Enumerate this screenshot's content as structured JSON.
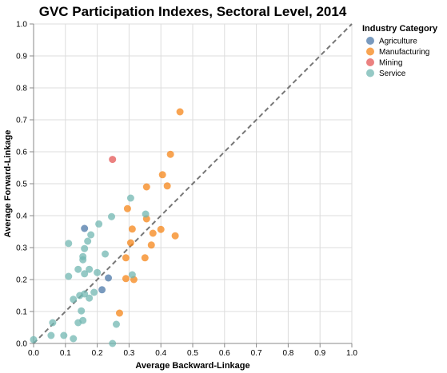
{
  "chart_data": {
    "type": "scatter",
    "title": "GVC Participation Indexes, Sectoral Level, 2014",
    "xlabel": "Average Backward-Linkage",
    "ylabel": "Average Forward-Linkage",
    "xlim": [
      0,
      1
    ],
    "ylim": [
      0,
      1
    ],
    "x_ticks": [
      "0.0",
      "0.1",
      "0.2",
      "0.3",
      "0.4",
      "0.5",
      "0.6",
      "0.7",
      "0.8",
      "0.9",
      "1.0"
    ],
    "y_ticks": [
      "0.0",
      "0.1",
      "0.2",
      "0.3",
      "0.4",
      "0.5",
      "0.6",
      "0.7",
      "0.8",
      "0.9",
      "1.0"
    ],
    "grid": true,
    "diagonal_reference_line": true,
    "legend": {
      "title": "Industry Category",
      "position": "right"
    },
    "series": [
      {
        "name": "Agriculture",
        "color": "#4c78a8",
        "points": [
          {
            "x": 0.16,
            "y": 0.36
          },
          {
            "x": 0.235,
            "y": 0.205
          },
          {
            "x": 0.215,
            "y": 0.168
          }
        ]
      },
      {
        "name": "Manufacturing",
        "color": "#f58518",
        "points": [
          {
            "x": 0.46,
            "y": 0.725
          },
          {
            "x": 0.43,
            "y": 0.592
          },
          {
            "x": 0.405,
            "y": 0.528
          },
          {
            "x": 0.42,
            "y": 0.493
          },
          {
            "x": 0.355,
            "y": 0.49
          },
          {
            "x": 0.295,
            "y": 0.422
          },
          {
            "x": 0.355,
            "y": 0.39
          },
          {
            "x": 0.31,
            "y": 0.358
          },
          {
            "x": 0.4,
            "y": 0.357
          },
          {
            "x": 0.375,
            "y": 0.345
          },
          {
            "x": 0.445,
            "y": 0.337
          },
          {
            "x": 0.305,
            "y": 0.315
          },
          {
            "x": 0.37,
            "y": 0.308
          },
          {
            "x": 0.29,
            "y": 0.268
          },
          {
            "x": 0.35,
            "y": 0.268
          },
          {
            "x": 0.29,
            "y": 0.203
          },
          {
            "x": 0.315,
            "y": 0.2
          },
          {
            "x": 0.27,
            "y": 0.095
          }
        ]
      },
      {
        "name": "Mining",
        "color": "#e45756",
        "points": [
          {
            "x": 0.248,
            "y": 0.576
          }
        ]
      },
      {
        "name": "Service",
        "color": "#72b7b2",
        "points": [
          {
            "x": 0.305,
            "y": 0.455
          },
          {
            "x": 0.352,
            "y": 0.405
          },
          {
            "x": 0.245,
            "y": 0.397
          },
          {
            "x": 0.205,
            "y": 0.374
          },
          {
            "x": 0.18,
            "y": 0.34
          },
          {
            "x": 0.17,
            "y": 0.32
          },
          {
            "x": 0.11,
            "y": 0.313
          },
          {
            "x": 0.16,
            "y": 0.297
          },
          {
            "x": 0.225,
            "y": 0.28
          },
          {
            "x": 0.155,
            "y": 0.272
          },
          {
            "x": 0.155,
            "y": 0.262
          },
          {
            "x": 0.14,
            "y": 0.232
          },
          {
            "x": 0.175,
            "y": 0.232
          },
          {
            "x": 0.2,
            "y": 0.222
          },
          {
            "x": 0.16,
            "y": 0.218
          },
          {
            "x": 0.31,
            "y": 0.215
          },
          {
            "x": 0.11,
            "y": 0.21
          },
          {
            "x": 0.19,
            "y": 0.16
          },
          {
            "x": 0.16,
            "y": 0.155
          },
          {
            "x": 0.145,
            "y": 0.15
          },
          {
            "x": 0.175,
            "y": 0.142
          },
          {
            "x": 0.125,
            "y": 0.138
          },
          {
            "x": 0.15,
            "y": 0.102
          },
          {
            "x": 0.155,
            "y": 0.072
          },
          {
            "x": 0.14,
            "y": 0.065
          },
          {
            "x": 0.06,
            "y": 0.065
          },
          {
            "x": 0.26,
            "y": 0.06
          },
          {
            "x": 0.055,
            "y": 0.025
          },
          {
            "x": 0.095,
            "y": 0.025
          },
          {
            "x": 0.125,
            "y": 0.015
          },
          {
            "x": 0.0,
            "y": 0.012
          },
          {
            "x": 0.248,
            "y": 0.0
          }
        ]
      }
    ]
  }
}
